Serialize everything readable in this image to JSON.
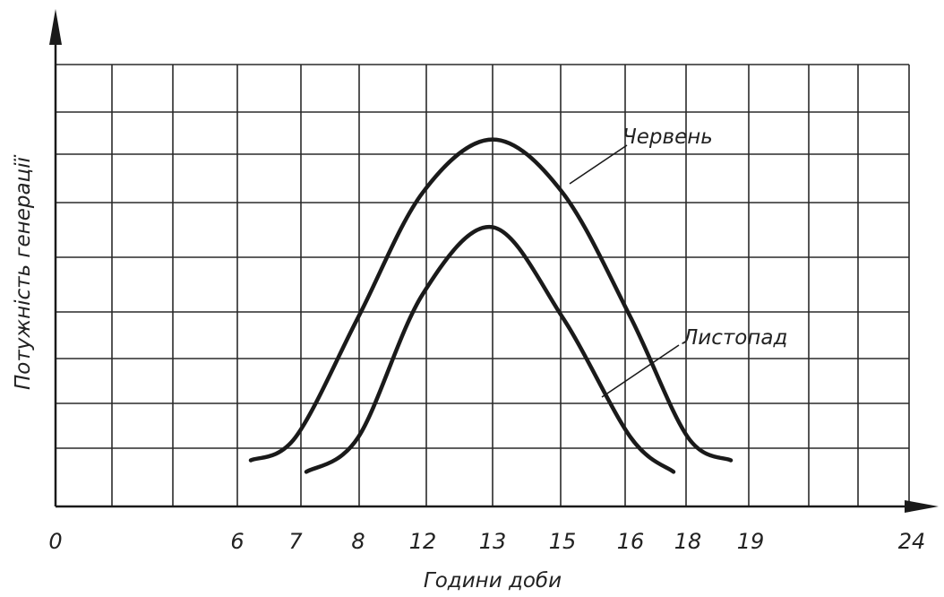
{
  "chart_data": {
    "type": "line",
    "xlabel": "Години доби",
    "ylabel": "Потужність генерації",
    "x_tick_labels": [
      "0",
      "6",
      "7",
      "8",
      "12",
      "13",
      "15",
      "16",
      "18",
      "19",
      "24"
    ],
    "grid": true,
    "series": [
      {
        "name": "Червень",
        "points": [
          {
            "x": "6",
            "y": 1.0
          },
          {
            "x": "7",
            "y": 1.5
          },
          {
            "x": "8",
            "y": 4.1
          },
          {
            "x": "12",
            "y": 6.8
          },
          {
            "x": "13",
            "y": 7.95
          },
          {
            "x": "15",
            "y": 6.8
          },
          {
            "x": "16",
            "y": 4.1
          },
          {
            "x": "18",
            "y": 1.5
          },
          {
            "x": "19",
            "y": 1.0
          }
        ]
      },
      {
        "name": "Листопад",
        "points": [
          {
            "x": "7",
            "y": 0.75
          },
          {
            "x": "8",
            "y": 1.5
          },
          {
            "x": "12",
            "y": 4.6
          },
          {
            "x": "13",
            "y": 6.05
          },
          {
            "x": "15",
            "y": 4.1
          },
          {
            "x": "16",
            "y": 1.5
          },
          {
            "x": "18",
            "y": 0.75
          }
        ]
      }
    ]
  }
}
